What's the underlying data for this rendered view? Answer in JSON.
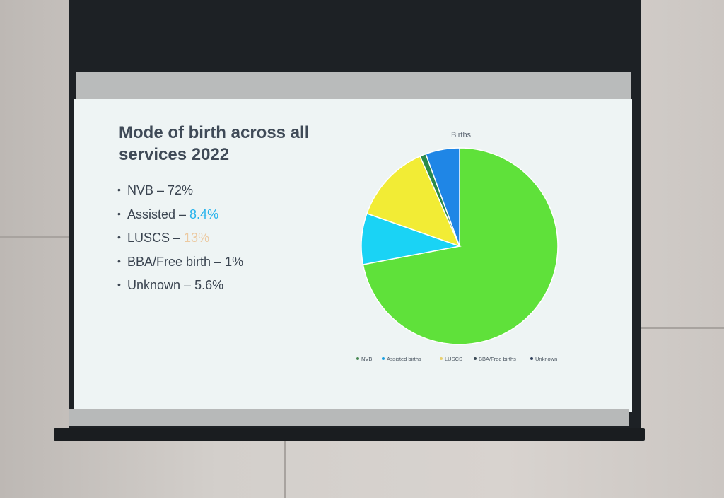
{
  "slide": {
    "title": "Mode of birth across all services 2022",
    "bullets": [
      {
        "label": "NVB",
        "sep": " – ",
        "value": "72%",
        "value_color": "#3a4450"
      },
      {
        "label": "Assisted",
        "sep": " – ",
        "value": "8.4%",
        "value_color": "#27b3ec"
      },
      {
        "label": "LUSCS",
        "sep": " – ",
        "value": "13%",
        "value_color": "#ecc9a0"
      },
      {
        "label": "BBA/Free birth",
        "sep": " – ",
        "value": "1%",
        "value_color": "#3a4450"
      },
      {
        "label": "Unknown",
        "sep": " – ",
        "value": "5.6%",
        "value_color": "#3a4450"
      }
    ]
  },
  "chart_data": {
    "type": "pie",
    "title": "Births",
    "legend_position": "bottom",
    "categories": [
      "NVB",
      "Assisted births",
      "LUSCS",
      "BBA/Free births",
      "Unknown"
    ],
    "values": [
      72,
      8.4,
      13,
      1,
      5.6
    ],
    "colors": [
      "#5fe13a",
      "#1ad3f5",
      "#f2ec35",
      "#2a8a4a",
      "#1f86e6"
    ],
    "legend_colors": [
      "#4a8a55",
      "#1a9fe0",
      "#e8d070",
      "#3a4a55",
      "#2f3e5a"
    ],
    "start_angle_deg": 0,
    "direction": "clockwise"
  }
}
